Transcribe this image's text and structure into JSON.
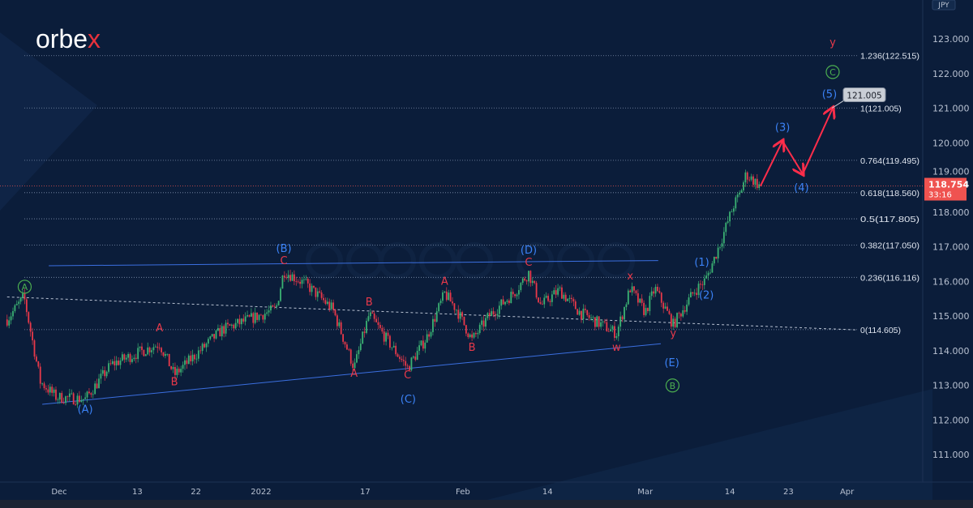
{
  "brand": {
    "name_main": "orbe",
    "name_accent": "x",
    "watermark": "orbex.com"
  },
  "chart_data": {
    "type": "candlestick",
    "instrument_currency": "JPY",
    "x_unit": "days since Dec 1",
    "xlim": [
      -8,
      140
    ],
    "ylim": [
      110.5,
      123.4
    ],
    "x_ticks": [
      {
        "d": 0,
        "label": "Dec"
      },
      {
        "d": 12,
        "label": "13"
      },
      {
        "d": 21,
        "label": "22"
      },
      {
        "d": 31,
        "label": "2022"
      },
      {
        "d": 47,
        "label": "17"
      },
      {
        "d": 62,
        "label": "Feb"
      },
      {
        "d": 75,
        "label": "14"
      },
      {
        "d": 90,
        "label": "Mar"
      },
      {
        "d": 103,
        "label": "14"
      },
      {
        "d": 112,
        "label": "23"
      },
      {
        "d": 121,
        "label": "Apr"
      }
    ],
    "y_ticks": [
      {
        "v": 123,
        "label": "123.000"
      },
      {
        "v": 122,
        "label": "122.000"
      },
      {
        "v": 121,
        "label": "121.000"
      },
      {
        "v": 120,
        "label": "120.000"
      },
      {
        "v": 119,
        "label": "119.000"
      },
      {
        "v": 118,
        "label": "118.000"
      },
      {
        "v": 117,
        "label": "117.000"
      },
      {
        "v": 116,
        "label": "116.000"
      },
      {
        "v": 115,
        "label": "115.000"
      },
      {
        "v": 114,
        "label": "114.000"
      },
      {
        "v": 113,
        "label": "113.000"
      },
      {
        "v": 112,
        "label": "112.000"
      },
      {
        "v": 111,
        "label": "111.000"
      }
    ],
    "price_path": [
      [
        -8,
        114.9
      ],
      [
        -5.4,
        115.55
      ],
      [
        -2.9,
        113.1
      ],
      [
        -0.4,
        112.65
      ],
      [
        4,
        112.6
      ],
      [
        8,
        113.6
      ],
      [
        15.4,
        114.2
      ],
      [
        17.7,
        113.3
      ],
      [
        25,
        114.6
      ],
      [
        33.3,
        115.2
      ],
      [
        34.5,
        116.3
      ],
      [
        38,
        115.9
      ],
      [
        42,
        115.2
      ],
      [
        45.3,
        113.5
      ],
      [
        47.6,
        115.05
      ],
      [
        50,
        114.4
      ],
      [
        53.5,
        113.5
      ],
      [
        56.5,
        114.4
      ],
      [
        59.2,
        115.65
      ],
      [
        61,
        115.2
      ],
      [
        63.4,
        114.3
      ],
      [
        66,
        115.0
      ],
      [
        70,
        115.7
      ],
      [
        72.1,
        116.25
      ],
      [
        74,
        115.3
      ],
      [
        76.8,
        115.75
      ],
      [
        80,
        115.1
      ],
      [
        85.6,
        114.5
      ],
      [
        87.7,
        115.8
      ],
      [
        90,
        115.1
      ],
      [
        91.5,
        115.8
      ],
      [
        94.3,
        114.75
      ],
      [
        97.5,
        115.7
      ],
      [
        99.3,
        116.05
      ],
      [
        100.5,
        116.6
      ],
      [
        101.7,
        117.2
      ],
      [
        103.6,
        118.2
      ],
      [
        104.5,
        118.5
      ],
      [
        105.5,
        119.1
      ],
      [
        107.6,
        118.754
      ]
    ],
    "last_price": {
      "value": "118.754",
      "countdown": "33:16",
      "price": 118.754
    },
    "fib_levels": [
      {
        "v": 122.515,
        "label": "1.236(122.515)"
      },
      {
        "v": 121.005,
        "label": "1(121.005)"
      },
      {
        "v": 119.495,
        "label": "0.764(119.495)"
      },
      {
        "v": 118.56,
        "label": "0.618(118.560)"
      },
      {
        "v": 117.805,
        "label": "0.5(117.805)"
      },
      {
        "v": 117.05,
        "label": "0.382(117.050)"
      },
      {
        "v": 116.116,
        "label": "0.236(116.116)"
      },
      {
        "v": 114.605,
        "label": "0(114.605)"
      }
    ],
    "target_tag": {
      "label": "121.005",
      "d": 121,
      "v": 121.35
    },
    "projection": [
      [
        107.7,
        118.75
      ],
      [
        111.1,
        120.05
      ],
      [
        114.2,
        119.1
      ],
      [
        118.8,
        121.0
      ]
    ],
    "trendlines": [
      {
        "style": "channel",
        "from": [
          -1.6,
          116.45
        ],
        "to": [
          92,
          116.6
        ]
      },
      {
        "style": "channel",
        "from": [
          -2.6,
          112.45
        ],
        "to": [
          92.4,
          114.2
        ]
      },
      {
        "style": "dashed",
        "from": [
          -8,
          115.55
        ],
        "to": [
          122.3,
          114.6
        ]
      }
    ],
    "annotations": [
      {
        "text": "A",
        "d": -5.3,
        "v": 115.75,
        "kind": "green-circle"
      },
      {
        "text": "(A)",
        "d": 4,
        "v": 112.2,
        "kind": "blue"
      },
      {
        "text": "A",
        "d": 15.4,
        "v": 114.55,
        "kind": "red"
      },
      {
        "text": "B",
        "d": 17.7,
        "v": 113.0,
        "kind": "red"
      },
      {
        "text": "(B)",
        "d": 34.5,
        "v": 116.85,
        "kind": "blue"
      },
      {
        "text": "C",
        "d": 34.5,
        "v": 116.5,
        "kind": "red"
      },
      {
        "text": "A",
        "d": 45.3,
        "v": 113.25,
        "kind": "red"
      },
      {
        "text": "B",
        "d": 47.6,
        "v": 115.3,
        "kind": "red"
      },
      {
        "text": "C",
        "d": 53.5,
        "v": 113.2,
        "kind": "red"
      },
      {
        "text": "(C)",
        "d": 53.6,
        "v": 112.5,
        "kind": "blue"
      },
      {
        "text": "A",
        "d": 59.2,
        "v": 115.9,
        "kind": "red"
      },
      {
        "text": "B",
        "d": 63.4,
        "v": 114.0,
        "kind": "red"
      },
      {
        "text": "(D)",
        "d": 72.1,
        "v": 116.8,
        "kind": "blue"
      },
      {
        "text": "C",
        "d": 72.1,
        "v": 116.45,
        "kind": "red"
      },
      {
        "text": "w",
        "d": 85.6,
        "v": 114.0,
        "kind": "red"
      },
      {
        "text": "x",
        "d": 87.7,
        "v": 116.05,
        "kind": "red"
      },
      {
        "text": "y",
        "d": 94.3,
        "v": 114.4,
        "kind": "red"
      },
      {
        "text": "(E)",
        "d": 94.1,
        "v": 113.55,
        "kind": "blue"
      },
      {
        "text": "B",
        "d": 94.2,
        "v": 112.9,
        "kind": "green-circle"
      },
      {
        "text": "(1)",
        "d": 98.7,
        "v": 116.45,
        "kind": "blue"
      },
      {
        "text": "(2)",
        "d": 99.4,
        "v": 115.5,
        "kind": "blue"
      },
      {
        "text": "(3)",
        "d": 111.1,
        "v": 120.35,
        "kind": "blue"
      },
      {
        "text": "(4)",
        "d": 114.0,
        "v": 118.6,
        "kind": "blue"
      },
      {
        "text": "(5)",
        "d": 118.3,
        "v": 121.3,
        "kind": "blue"
      },
      {
        "text": "C",
        "d": 118.8,
        "v": 121.95,
        "kind": "green-circle"
      },
      {
        "text": "y",
        "d": 118.8,
        "v": 122.8,
        "kind": "red"
      }
    ]
  },
  "colors": {
    "bg": "#0b1d3a",
    "up": "#3bb273",
    "down": "#e8394a",
    "red_label": "#e8394a",
    "blue_label": "#3b82f6",
    "green_label": "#4caf50",
    "last_price_bg": "#ef5350",
    "axis_text": "#b8c1d1"
  }
}
